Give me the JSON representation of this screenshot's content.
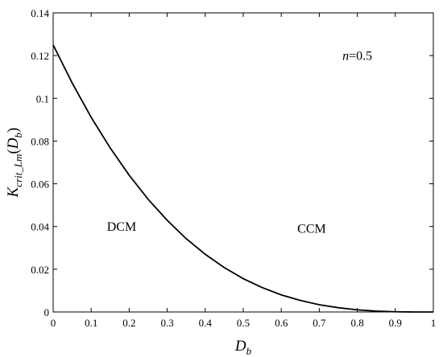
{
  "chart_data": {
    "type": "line",
    "title": "",
    "xlabel": {
      "main": "D",
      "sub": "b"
    },
    "ylabel": {
      "main": "K",
      "sub": "crit_Lm",
      "open": "(",
      "arg_main": "D",
      "arg_sub": "b",
      "close": ")"
    },
    "xlim": [
      0,
      1
    ],
    "ylim": [
      0,
      0.14
    ],
    "xticks": [
      0,
      0.1,
      0.2,
      0.3,
      0.4,
      0.5,
      0.6,
      0.7,
      0.8,
      0.9,
      1
    ],
    "xtick_labels": [
      "0",
      "0.1",
      "0.2",
      "0.3",
      "0.4",
      "0.5",
      "0.6",
      "0.7",
      "0.8",
      "0.9",
      "1"
    ],
    "yticks": [
      0,
      0.02,
      0.04,
      0.06,
      0.08,
      0.1,
      0.12,
      0.14
    ],
    "ytick_labels": [
      "0",
      "0.02",
      "0.04",
      "0.06",
      "0.08",
      "0.1",
      "0.12",
      "0.14"
    ],
    "grid": false,
    "series": [
      {
        "color": "#000000",
        "x": [
          0,
          0.05,
          0.1,
          0.15,
          0.2,
          0.25,
          0.3,
          0.35,
          0.4,
          0.45,
          0.5,
          0.55,
          0.6,
          0.65,
          0.7,
          0.75,
          0.8,
          0.85,
          0.9,
          0.95,
          1
        ],
        "y": [
          0.125,
          0.1072,
          0.0911,
          0.0768,
          0.064,
          0.0527,
          0.0429,
          0.0343,
          0.027,
          0.0208,
          0.0156,
          0.0114,
          0.008,
          0.0054,
          0.0034,
          0.002,
          0.001,
          0.0004,
          0.0001,
          0.0,
          0
        ]
      }
    ],
    "annotations": [
      {
        "text": "DCM",
        "x": 0.18,
        "y": 0.038
      },
      {
        "text": "CCM",
        "x": 0.68,
        "y": 0.037
      },
      {
        "var": "n",
        "text": "=0.5",
        "x": 0.8,
        "y": 0.118
      }
    ]
  }
}
